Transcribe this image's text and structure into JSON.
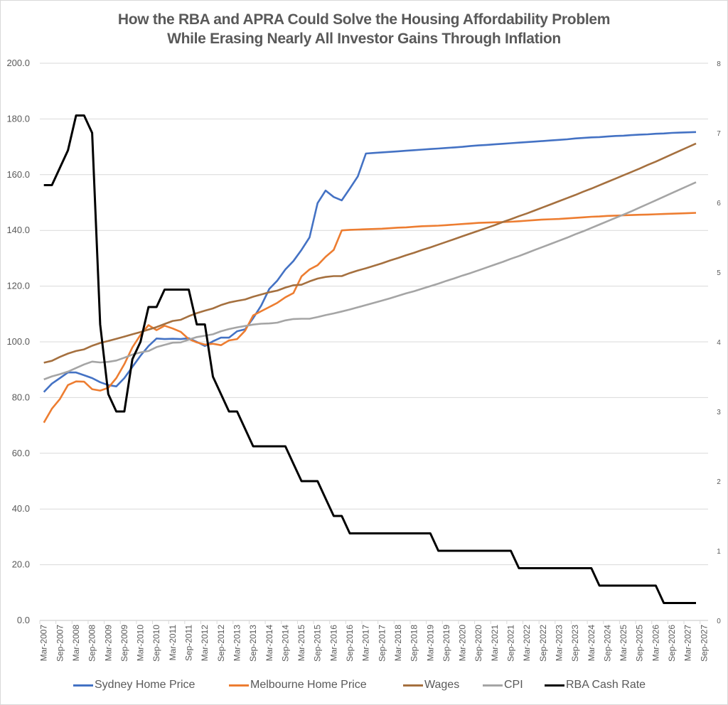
{
  "chart_data": {
    "type": "line",
    "title_line1": "How the RBA and APRA Could Solve the Housing Affordability Problem",
    "title_line2": "While Erasing Nearly All Investor Gains Through Inflation",
    "xlabel": "",
    "ylabel": "",
    "ylim": [
      0,
      200
    ],
    "y2lim": [
      0,
      8
    ],
    "yticks": [
      "0.0",
      "20.0",
      "40.0",
      "60.0",
      "80.0",
      "100.0",
      "120.0",
      "140.0",
      "160.0",
      "180.0",
      "200.0"
    ],
    "y2ticks": [
      "0",
      "1",
      "2",
      "3",
      "4",
      "5",
      "6",
      "7",
      "8"
    ],
    "grid": true,
    "legend_position": "bottom",
    "x_tick_labels": [
      "Mar-2007",
      "Sep-2007",
      "Mar-2008",
      "Sep-2008",
      "Mar-2009",
      "Sep-2009",
      "Mar-2010",
      "Sep-2010",
      "Mar-2011",
      "Sep-2011",
      "Mar-2012",
      "Sep-2012",
      "Mar-2013",
      "Sep-2013",
      "Mar-2014",
      "Sep-2014",
      "Mar-2015",
      "Sep-2015",
      "Mar-2016",
      "Sep-2016",
      "Mar-2017",
      "Sep-2017",
      "Mar-2018",
      "Sep-2018",
      "Mar-2019",
      "Sep-2019",
      "Mar-2020",
      "Sep-2020",
      "Mar-2021",
      "Sep-2021",
      "Mar-2022",
      "Sep-2022",
      "Mar-2023",
      "Sep-2023",
      "Mar-2024",
      "Sep-2024",
      "Mar-2025",
      "Sep-2025",
      "Mar-2026",
      "Sep-2026",
      "Mar-2027",
      "Sep-2027"
    ],
    "series": [
      {
        "name": "Sydney Home Price",
        "axis": "left",
        "color": "#4472C4",
        "values": [
          82,
          85,
          87,
          89,
          89,
          88,
          87,
          85.5,
          84.5,
          84,
          87,
          91,
          95,
          98.5,
          101.2,
          101,
          101.1,
          101,
          101.3,
          100,
          98.5,
          100.2,
          101.5,
          101.5,
          103.8,
          104.5,
          108.5,
          113,
          119,
          122,
          126,
          129,
          133,
          137.5,
          149.8,
          154.3,
          152,
          150.8,
          155,
          159.4,
          167.6,
          167.8,
          168,
          168.2,
          168.4,
          168.6,
          168.8,
          169,
          169.2,
          169.4,
          169.6,
          169.8,
          170,
          170.3,
          170.5,
          170.7,
          170.9,
          171.1,
          171.3,
          171.5,
          171.7,
          171.9,
          172.1,
          172.3,
          172.5,
          172.7,
          173,
          173.2,
          173.4,
          173.5,
          173.7,
          173.9,
          174,
          174.2,
          174.4,
          174.5,
          174.7,
          174.8,
          175,
          175.1,
          175.2,
          175.3,
          175.4
        ]
      },
      {
        "name": "Melbourne Home Price",
        "axis": "left",
        "color": "#ED7D31",
        "values": [
          71,
          76,
          79.5,
          84.5,
          85.8,
          85.7,
          83,
          82.5,
          83.5,
          87,
          92,
          98,
          102.5,
          106,
          104.2,
          105.8,
          104.8,
          103.6,
          101,
          99.8,
          99,
          99.3,
          98.8,
          100.5,
          101,
          104,
          109.5,
          111,
          112.5,
          114,
          116,
          117.5,
          123.5,
          126,
          127.5,
          130.5,
          133,
          140,
          140.2,
          140.3,
          140.4,
          140.5,
          140.6,
          140.8,
          141,
          141.1,
          141.3,
          141.5,
          141.6,
          141.7,
          141.9,
          142.1,
          142.3,
          142.5,
          142.7,
          142.8,
          142.9,
          143,
          143.1,
          143.3,
          143.5,
          143.7,
          143.9,
          144,
          144.1,
          144.3,
          144.5,
          144.7,
          144.9,
          145,
          145.2,
          145.3,
          145.4,
          145.5,
          145.6,
          145.7,
          145.8,
          145.9,
          146,
          146.1,
          146.2,
          146.3,
          146.4
        ]
      },
      {
        "name": "Wages",
        "axis": "left",
        "color": "#A5703F",
        "values": [
          92.5,
          93.2,
          94.6,
          95.8,
          96.7,
          97.3,
          98.6,
          99.6,
          100.3,
          101.1,
          101.9,
          102.7,
          103.5,
          104.4,
          105.3,
          106.4,
          107.5,
          107.9,
          109.2,
          110.3,
          111.2,
          112,
          113.2,
          114.1,
          114.7,
          115.2,
          116.2,
          117,
          117.8,
          118.4,
          119.5,
          120.3,
          120.5,
          121.7,
          122.7,
          123.3,
          123.6,
          123.6,
          124.7,
          125.6,
          126.4,
          127.3,
          128.2,
          129.2,
          130.1,
          131.1,
          132,
          133,
          133.9,
          134.9,
          135.9,
          136.9,
          137.9,
          138.9,
          139.9,
          140.9,
          141.9,
          143,
          144,
          145.1,
          146.1,
          147.2,
          148.3,
          149.4,
          150.5,
          151.6,
          152.7,
          153.9,
          155,
          156.2,
          157.4,
          158.6,
          159.8,
          161,
          162.2,
          163.5,
          164.7,
          166,
          167.3,
          168.6,
          169.9,
          171.2,
          172.5,
          173.7
        ]
      },
      {
        "name": "CPI",
        "axis": "left",
        "color": "#A5A5A5",
        "values": [
          86.5,
          87.6,
          88.4,
          89.3,
          90.6,
          91.9,
          92.9,
          92.6,
          92.8,
          93.3,
          94.3,
          95.4,
          96.2,
          96.7,
          98.1,
          98.9,
          99.7,
          99.8,
          100.8,
          101.7,
          102.2,
          102.7,
          103.8,
          104.6,
          105.2,
          105.7,
          106.2,
          106.5,
          106.6,
          106.9,
          107.7,
          108.2,
          108.3,
          108.3,
          108.9,
          109.6,
          110.2,
          110.9,
          111.6,
          112.4,
          113.2,
          114,
          114.8,
          115.6,
          116.5,
          117.4,
          118.2,
          119.1,
          120,
          120.9,
          121.9,
          122.8,
          123.8,
          124.7,
          125.7,
          126.7,
          127.7,
          128.7,
          129.8,
          130.8,
          131.9,
          133,
          134.1,
          135.2,
          136.3,
          137.4,
          138.6,
          139.7,
          140.9,
          142.1,
          143.3,
          144.5,
          145.7,
          146.9,
          148.2,
          149.5,
          150.8,
          152.1,
          153.4,
          154.7,
          156,
          157.3,
          152.6
        ]
      },
      {
        "name": "RBA Cash Rate",
        "axis": "right",
        "color": "#000000",
        "values": [
          6.25,
          6.25,
          6.5,
          6.75,
          7.25,
          7.25,
          7.0,
          4.25,
          3.25,
          3.0,
          3.0,
          3.75,
          4.0,
          4.5,
          4.5,
          4.75,
          4.75,
          4.75,
          4.75,
          4.25,
          4.25,
          3.5,
          3.25,
          3.0,
          3.0,
          2.75,
          2.5,
          2.5,
          2.5,
          2.5,
          2.5,
          2.25,
          2.0,
          2.0,
          2.0,
          1.75,
          1.5,
          1.5,
          1.25,
          1.25,
          1.25,
          1.25,
          1.25,
          1.25,
          1.25,
          1.25,
          1.25,
          1.25,
          1.25,
          1.0,
          1.0,
          1.0,
          1.0,
          1.0,
          1.0,
          1.0,
          1.0,
          1.0,
          1.0,
          0.75,
          0.75,
          0.75,
          0.75,
          0.75,
          0.75,
          0.75,
          0.75,
          0.75,
          0.75,
          0.5,
          0.5,
          0.5,
          0.5,
          0.5,
          0.5,
          0.5,
          0.5,
          0.25,
          0.25,
          0.25,
          0.25,
          0.25,
          0.25
        ]
      }
    ]
  }
}
